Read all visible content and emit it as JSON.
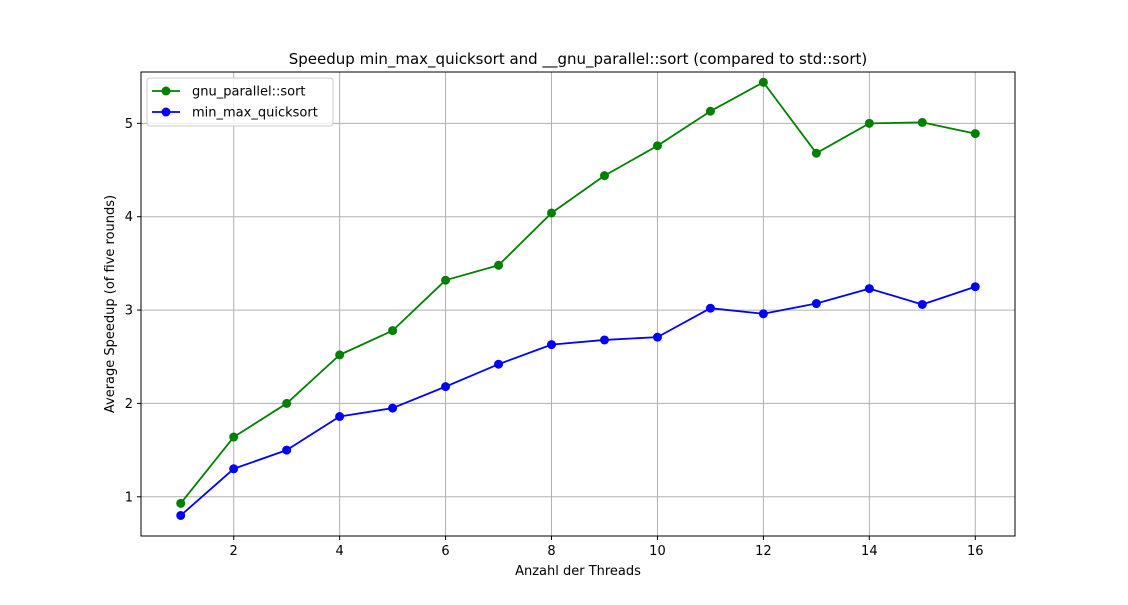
{
  "chart_data": {
    "type": "line",
    "title": "Speedup min_max_quicksort and __gnu_parallel::sort (compared to std::sort)",
    "xlabel": "Anzahl der Threads",
    "ylabel": "Average Speedup (of five rounds)",
    "x": [
      1,
      2,
      3,
      4,
      5,
      6,
      7,
      8,
      9,
      10,
      11,
      12,
      13,
      14,
      15,
      16
    ],
    "xlim": [
      0.25,
      16.75
    ],
    "ylim": [
      0.58,
      5.55
    ],
    "xticks": [
      2,
      4,
      6,
      8,
      10,
      12,
      14,
      16
    ],
    "yticks": [
      1,
      2,
      3,
      4,
      5
    ],
    "grid": true,
    "legend_position": "top-left",
    "series": [
      {
        "name": "gnu_parallel::sort",
        "color": "#008000",
        "marker": "circle",
        "values": [
          0.93,
          1.64,
          2.0,
          2.52,
          2.78,
          3.32,
          3.48,
          4.04,
          4.44,
          4.76,
          5.13,
          5.44,
          4.68,
          5.0,
          5.01,
          4.89
        ]
      },
      {
        "name": "min_max_quicksort",
        "color": "#0000ff",
        "marker": "circle",
        "values": [
          0.8,
          1.3,
          1.5,
          1.86,
          1.95,
          2.18,
          2.42,
          2.63,
          2.68,
          2.71,
          3.02,
          2.96,
          3.07,
          3.23,
          3.06,
          3.25
        ]
      }
    ]
  }
}
